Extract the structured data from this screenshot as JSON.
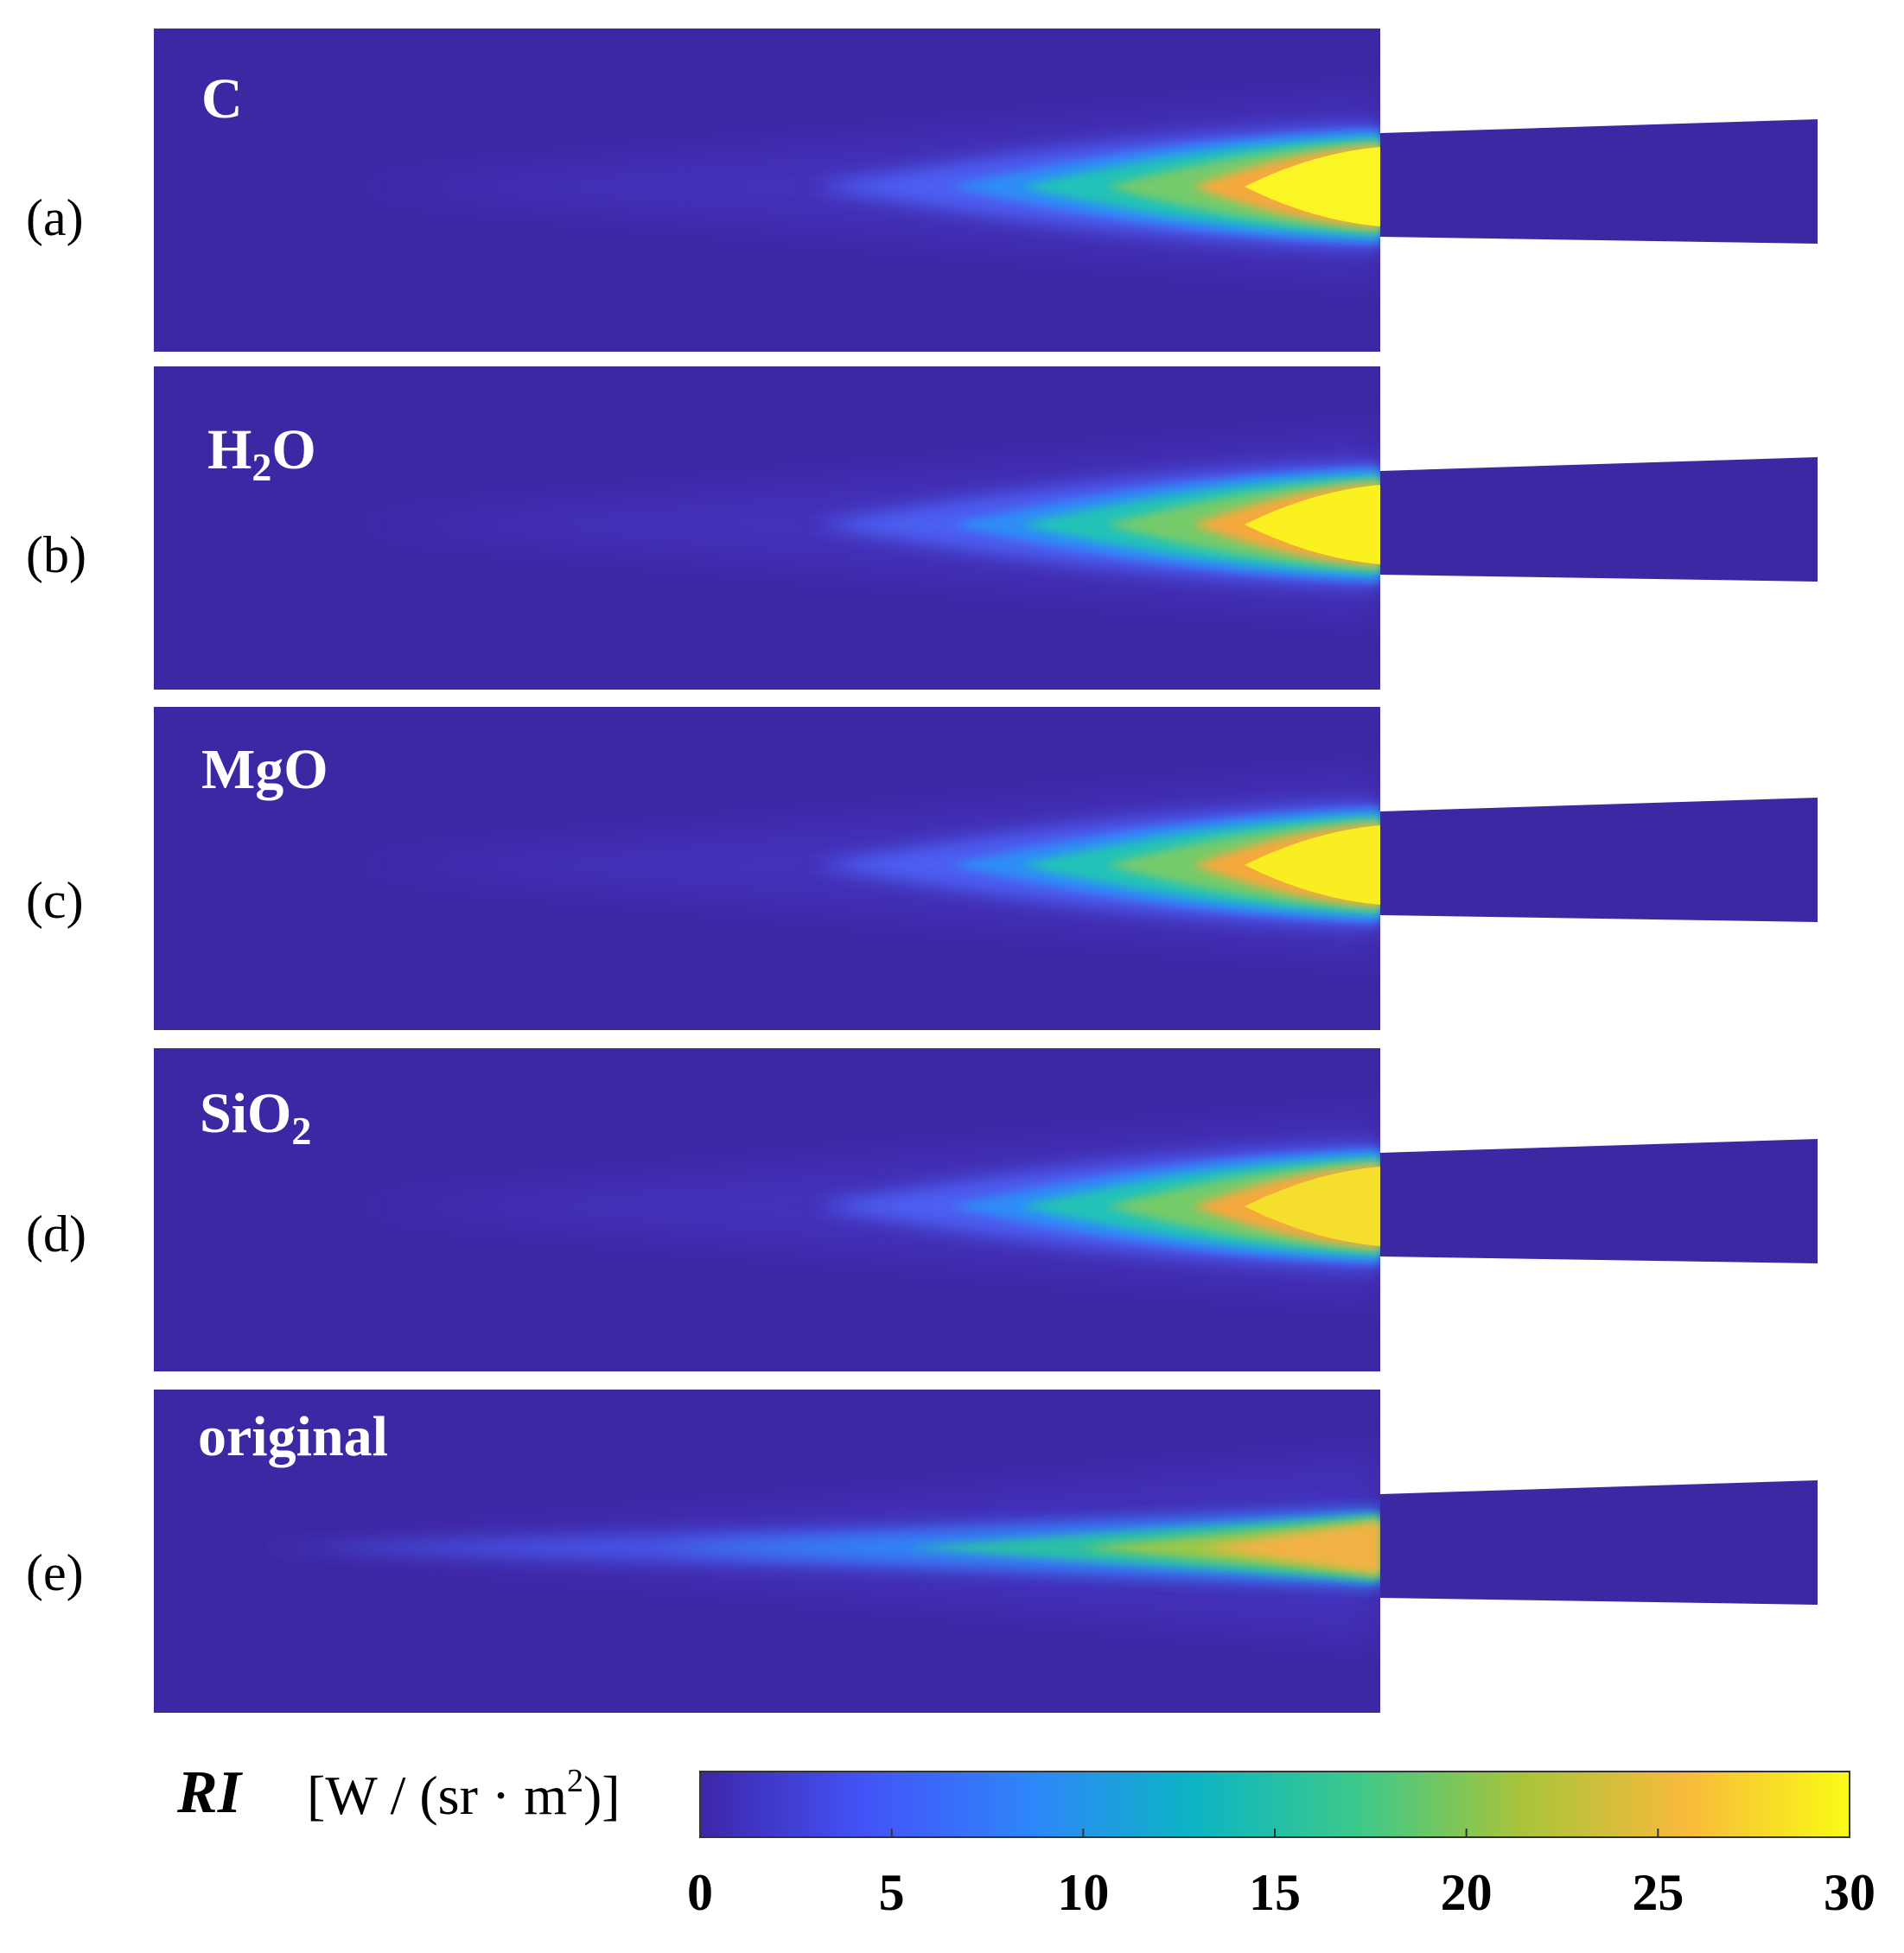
{
  "panels": [
    {
      "label": "(a)",
      "species": "C",
      "species_sub": "",
      "species_tail": "",
      "core_color": "#fbf525"
    },
    {
      "label": "(b)",
      "species": "H",
      "species_sub": "2",
      "species_tail": "O",
      "core_color": "#fbf120"
    },
    {
      "label": "(c)",
      "species": "MgO",
      "species_sub": "",
      "species_tail": "",
      "core_color": "#f8ee22"
    },
    {
      "label": "(d)",
      "species": "SiO",
      "species_sub": "2",
      "species_tail": "",
      "core_color": "#f6df2c"
    },
    {
      "label": "(e)",
      "species": "original",
      "species_sub": "",
      "species_tail": "",
      "core_color": "#f2b244"
    }
  ],
  "colorbar": {
    "variable": "RI",
    "unit_open": "[W / (sr · m",
    "unit_sup": "2",
    "unit_close": ")]",
    "min": 0,
    "max": 30,
    "ticks": [
      "0",
      "5",
      "10",
      "15",
      "20",
      "25",
      "30"
    ],
    "colors": [
      "#3e26a8",
      "#4353f8",
      "#2f85fb",
      "#0cb5c4",
      "#3cc98b",
      "#a8c43a",
      "#f8ba3c",
      "#f9fb15"
    ]
  },
  "background_color": "#3d27a3"
}
